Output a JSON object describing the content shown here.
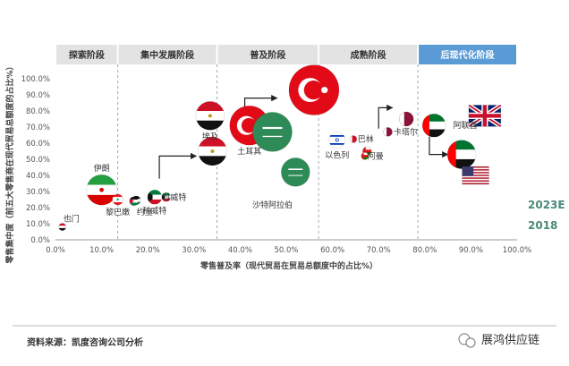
{
  "chart_data": {
    "type": "scatter",
    "title": "",
    "xlabel": "零售普及率（现代贸易在贸易总额度中的占比%）",
    "ylabel": "零售集中度（前五大零售商在现代贸易总额度的占比%）",
    "xlim": [
      0,
      100
    ],
    "ylim": [
      0,
      100
    ],
    "x_ticks": [
      "0.0%",
      "10.0%",
      "20.0%",
      "30.0%",
      "40.0%",
      "50.0%",
      "60.0%",
      "70.0%",
      "80.0%",
      "90.0%",
      "100.0%"
    ],
    "y_ticks": [
      "0.0%",
      "10.0%",
      "20.0%",
      "30.0%",
      "40.0%",
      "50.0%",
      "60.0%",
      "70.0%",
      "80.0%",
      "90.0%",
      "100.0%"
    ],
    "stages": [
      "探索阶段",
      "集中发展阶段",
      "普及阶段",
      "成熟阶段",
      "后现代化阶段"
    ],
    "stage_bounds": [
      0,
      13.5,
      35,
      57,
      78.5,
      100
    ],
    "highlight_stage": 4,
    "series": [
      {
        "name": "2023E",
        "points": [
          {
            "label": "",
            "x": 1.5,
            "y": 8,
            "size": 4,
            "flag": "ye"
          },
          {
            "label": "伊朗",
            "x": 10,
            "y": 31,
            "size": 17,
            "flag": "ir"
          },
          {
            "label": "",
            "x": 17.5,
            "y": 24.5,
            "size": 5,
            "flag": "jo"
          },
          {
            "label": "科威特",
            "x": 21.5,
            "y": 26.5,
            "size": 8,
            "flag": "kw"
          },
          {
            "label": "埃及",
            "x": 33.5,
            "y": 77,
            "size": 16,
            "flag": "eg"
          },
          {
            "label": "",
            "x": 56,
            "y": 93,
            "size": 28,
            "flag": "tr"
          },
          {
            "label": "",
            "x": 52,
            "y": 42,
            "size": 16,
            "flag": "sa"
          },
          {
            "label": "",
            "x": 67.5,
            "y": 55,
            "size": 5,
            "flag": "om"
          },
          {
            "label": "",
            "x": 76,
            "y": 75,
            "size": 8,
            "flag": "qa"
          },
          {
            "label": "",
            "x": 88,
            "y": 53,
            "size": 16,
            "flag": "ae"
          },
          {
            "label": "",
            "x": 93,
            "y": 77,
            "size": 12,
            "flag": "gb"
          },
          {
            "label": "",
            "x": 91,
            "y": 40,
            "size": 10,
            "flag": "us"
          }
        ]
      },
      {
        "name": "2018",
        "points": [
          {
            "label": "也门",
            "x": 1.5,
            "y": 8,
            "size": 4,
            "flag": "ye"
          },
          {
            "label": "黎巴嫩",
            "x": 13.5,
            "y": 25,
            "size": 6,
            "flag": "lb"
          },
          {
            "label": "约旦",
            "x": 17,
            "y": 24,
            "size": 5,
            "flag": "jo"
          },
          {
            "label": "",
            "x": 24,
            "y": 26.5,
            "size": 5,
            "flag": "kw"
          },
          {
            "label": "",
            "x": 34,
            "y": 55,
            "size": 16,
            "flag": "eg"
          },
          {
            "label": "土耳其",
            "x": 42,
            "y": 71,
            "size": 22,
            "flag": "tr"
          },
          {
            "label": "沙特阿拉伯",
            "x": 47,
            "y": 67,
            "size": 22,
            "flag": "sa"
          },
          {
            "label": "以色列",
            "x": 61,
            "y": 62,
            "size": 9,
            "flag": "il"
          },
          {
            "label": "巴林",
            "x": 64.5,
            "y": 62.5,
            "size": 4,
            "flag": "bh"
          },
          {
            "label": "阿曼",
            "x": 67,
            "y": 52,
            "size": 4,
            "flag": "om"
          },
          {
            "label": "卡塔尔",
            "x": 72,
            "y": 67,
            "size": 5,
            "flag": "qa"
          },
          {
            "label": "阿联酋",
            "x": 82,
            "y": 71,
            "size": 13,
            "flag": "ae"
          }
        ]
      }
    ],
    "arrows": [
      {
        "from": [
          22.5,
          38
        ],
        "to": [
          30.5,
          52
        ]
      },
      {
        "from": [
          41,
          60
        ],
        "to": [
          48,
          88
        ]
      },
      {
        "from": [
          70,
          69
        ],
        "to": [
          73,
          82
        ]
      },
      {
        "from": [
          81,
          64
        ],
        "to": [
          85,
          53
        ]
      }
    ],
    "legend": [
      "2023E",
      "2018"
    ],
    "legend_position": "right"
  },
  "source_text": "资料来源：凯度咨询公司分析",
  "watermark": "展鸿供应链",
  "colors": {
    "stage_bg": "#e3e3e3",
    "stage_hl": "#5b9bd5",
    "bubble_2023": "#d9201f",
    "bubble_2018": "#3f8f5b",
    "grid": "#cccccc",
    "arrow": "#222222"
  }
}
